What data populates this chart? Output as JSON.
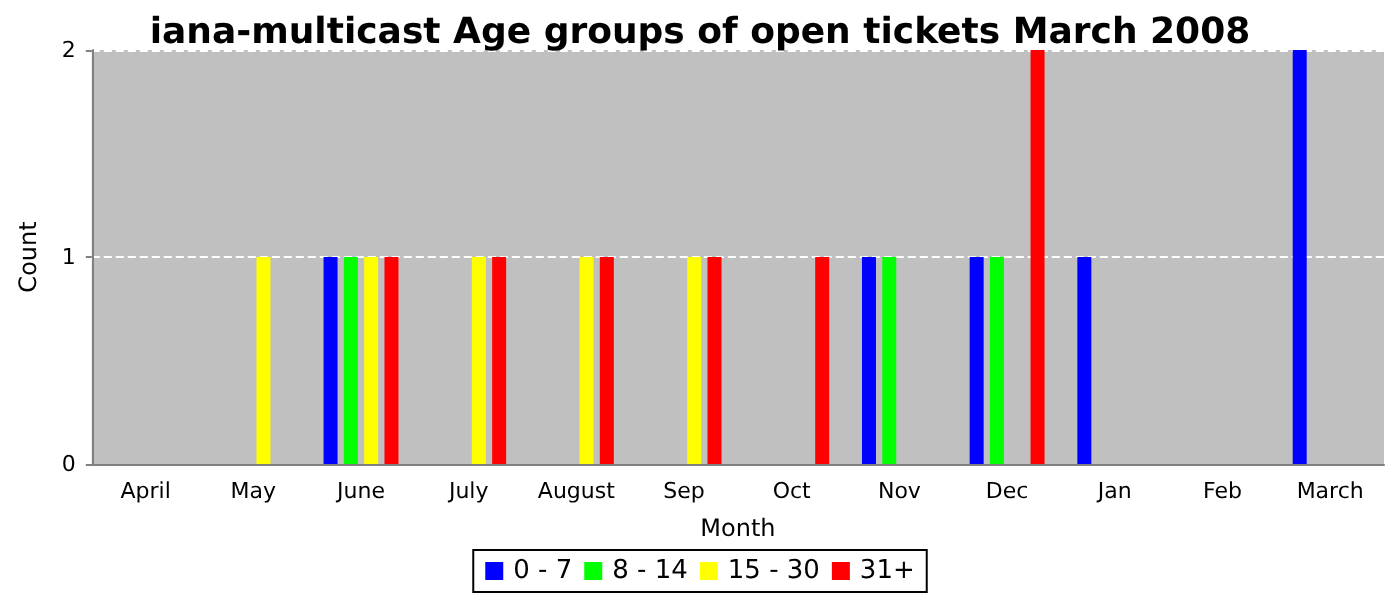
{
  "chart_data": {
    "type": "bar",
    "title": "iana-multicast Age groups of open tickets March 2008",
    "xlabel": "Month",
    "ylabel": "Count",
    "categories": [
      "April",
      "May",
      "June",
      "July",
      "August",
      "Sep",
      "Oct",
      "Nov",
      "Dec",
      "Jan",
      "Feb",
      "March"
    ],
    "series": [
      {
        "name": "0 - 7",
        "color": "#0000ff",
        "values": [
          0,
          0,
          1,
          0,
          0,
          0,
          0,
          1,
          1,
          1,
          0,
          2
        ]
      },
      {
        "name": "8 - 14",
        "color": "#00ff00",
        "values": [
          0,
          0,
          1,
          0,
          0,
          0,
          0,
          1,
          1,
          0,
          0,
          0
        ]
      },
      {
        "name": "15 - 30",
        "color": "#ffff00",
        "values": [
          0,
          1,
          1,
          1,
          1,
          1,
          0,
          0,
          0,
          0,
          0,
          0
        ]
      },
      {
        "name": "31+",
        "color": "#ff0000",
        "values": [
          0,
          0,
          1,
          1,
          1,
          1,
          1,
          0,
          2,
          0,
          0,
          0
        ]
      }
    ],
    "ylim": [
      0,
      2
    ],
    "yticks": [
      0,
      1,
      2
    ],
    "grid": "y",
    "legend": "bottom"
  }
}
